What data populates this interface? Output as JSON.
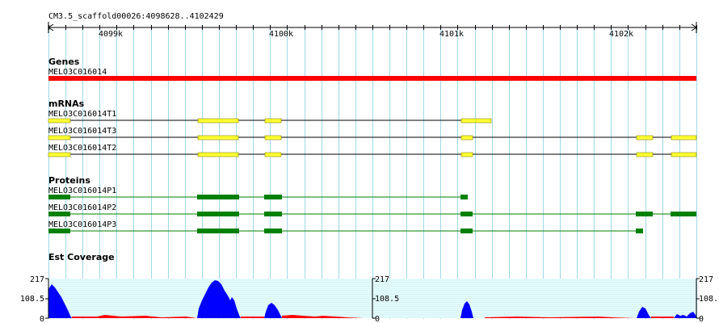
{
  "ruler": {
    "label": "CM3.5_scaffold00026:4098628..4102429",
    "ticks": [
      "4099k",
      "4100k",
      "4101k",
      "4102k"
    ]
  },
  "tracks": {
    "genes": {
      "title": "Genes",
      "features": [
        {
          "name": "MELO3C016014",
          "color": "#ff0000"
        }
      ]
    },
    "mrnas": {
      "title": "mRNAs",
      "features": [
        {
          "name": "MELO3C016014T1",
          "color": "#ffff33"
        },
        {
          "name": "MELO3C016014T3",
          "color": "#ffff33"
        },
        {
          "name": "MELO3C016014T2",
          "color": "#ffff33"
        }
      ]
    },
    "proteins": {
      "title": "Proteins",
      "features": [
        {
          "name": "MELO3C016014P1",
          "color": "#008000"
        },
        {
          "name": "MELO3C016014P2",
          "color": "#008000"
        },
        {
          "name": "MELO3C016014P3",
          "color": "#008000"
        }
      ]
    },
    "est": {
      "title": "Est Coverage",
      "scale_labels": [
        "217",
        "108.5",
        "0"
      ]
    }
  },
  "colors": {
    "gene": "#ff0000",
    "exon": "#ffff33",
    "protein": "#008000",
    "coverage": "#0000ff",
    "low_coverage": "#ff0000",
    "grid": "#9fd8e6",
    "band": "#e6fbfb"
  }
}
